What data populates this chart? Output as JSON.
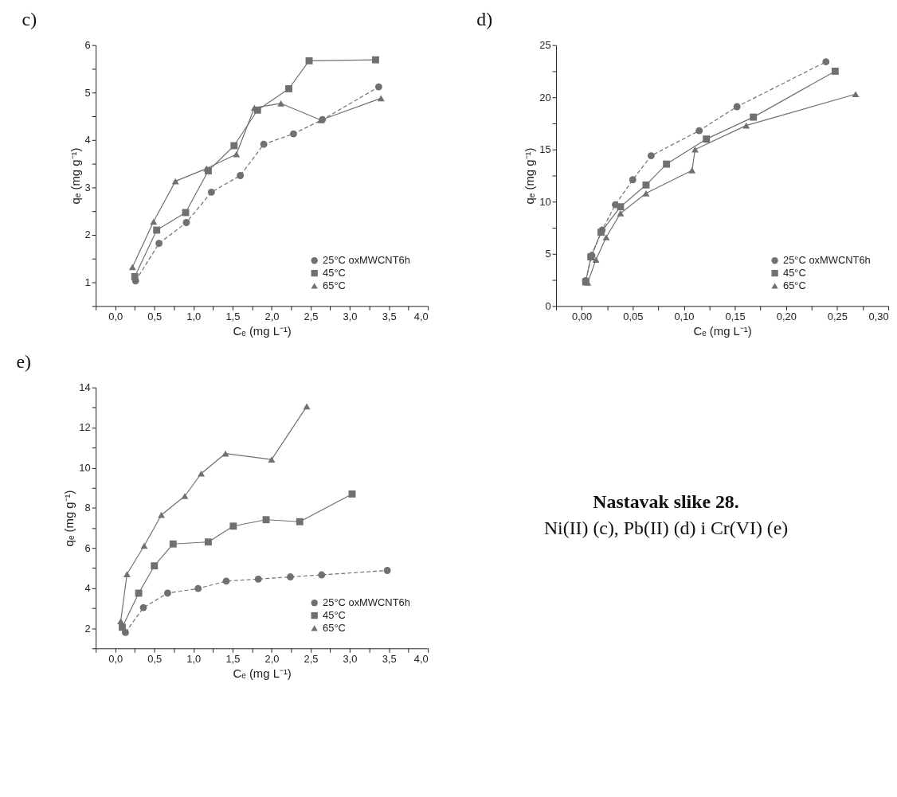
{
  "chart_data": [
    {
      "type": "line",
      "title": "c)",
      "xlabel": "Cₑ (mg L⁻¹)",
      "ylabel": "qₑ (mg g⁻¹)",
      "legend": "bottom right",
      "grid": false,
      "xlim": [
        -0.25,
        4.0
      ],
      "ylim": [
        0.5,
        6
      ],
      "xticks": [
        {
          "value": -0.25,
          "label": null
        },
        {
          "value": 0,
          "label": "0,0"
        },
        {
          "value": 0.25,
          "label": null
        },
        {
          "value": 0.5,
          "label": "0,5"
        },
        {
          "value": 0.75,
          "label": null
        },
        {
          "value": 1,
          "label": "1,0"
        },
        {
          "value": 1.25,
          "label": null
        },
        {
          "value": 1.5,
          "label": "1,5"
        },
        {
          "value": 1.75,
          "label": null
        },
        {
          "value": 2,
          "label": "2,0"
        },
        {
          "value": 2.25,
          "label": null
        },
        {
          "value": 2.5,
          "label": "2,5"
        },
        {
          "value": 2.75,
          "label": null
        },
        {
          "value": 3,
          "label": "3,0"
        },
        {
          "value": 3.25,
          "label": null
        },
        {
          "value": 3.5,
          "label": "3,5"
        },
        {
          "value": 3.75,
          "label": null
        },
        {
          "value": 4,
          "label": "4,0"
        }
      ],
      "yticks": [
        {
          "value": 0.5,
          "label": null
        },
        1,
        {
          "value": 1.5,
          "label": null
        },
        2,
        {
          "value": 2.5,
          "label": null
        },
        3,
        {
          "value": 3.5,
          "label": null
        },
        4,
        {
          "value": 4.5,
          "label": null
        },
        5,
        {
          "value": 5.5,
          "label": null
        },
        6
      ],
      "series": [
        {
          "name": "25°C  oxMWCNT6h",
          "color": "#707070",
          "marker": "circle",
          "line_style": "dashed",
          "x": [
            0.26,
            0.56,
            0.91,
            1.23,
            1.6,
            1.9,
            2.28,
            2.65,
            3.37
          ],
          "values": [
            1.03,
            1.82,
            2.26,
            2.9,
            3.25,
            3.91,
            4.13,
            4.43,
            5.12
          ]
        },
        {
          "name": "45°C",
          "color": "#707070",
          "marker": "square",
          "line_style": "solid",
          "x": [
            0.25,
            0.53,
            0.9,
            1.19,
            1.52,
            1.82,
            2.22,
            2.48,
            3.33
          ],
          "values": [
            1.12,
            2.1,
            2.47,
            3.35,
            3.88,
            4.63,
            5.08,
            5.67,
            5.69
          ]
        },
        {
          "name": "65°C",
          "color": "#707070",
          "marker": "triangle",
          "line_style": "solid",
          "x": [
            0.22,
            0.49,
            0.77,
            1.17,
            1.55,
            1.78,
            2.12,
            2.63,
            3.4
          ],
          "values": [
            1.32,
            2.28,
            3.13,
            3.4,
            3.7,
            4.68,
            4.77,
            4.42,
            4.88
          ]
        }
      ]
    },
    {
      "type": "line",
      "title": "d)",
      "xlabel": "Cₑ (mg L⁻¹)",
      "ylabel": "qₑ (mg g⁻¹)",
      "legend": "bottom right",
      "grid": false,
      "xlim": [
        -0.025,
        0.3
      ],
      "ylim": [
        0,
        25
      ],
      "xticks": [
        {
          "value": -0.025,
          "label": null
        },
        {
          "value": 0,
          "label": "0,00"
        },
        {
          "value": 0.025,
          "label": null
        },
        {
          "value": 0.05,
          "label": "0,05"
        },
        {
          "value": 0.075,
          "label": null
        },
        {
          "value": 0.1,
          "label": "0,10"
        },
        {
          "value": 0.125,
          "label": null
        },
        {
          "value": 0.15,
          "label": "0,15"
        },
        {
          "value": 0.175,
          "label": null
        },
        {
          "value": 0.2,
          "label": "0,20"
        },
        {
          "value": 0.225,
          "label": null
        },
        {
          "value": 0.25,
          "label": "0,25"
        },
        {
          "value": 0.275,
          "label": null
        },
        {
          "value": 0.3,
          "label": "0,30"
        }
      ],
      "yticks": [
        0,
        {
          "value": 2.5,
          "label": null
        },
        5,
        {
          "value": 7.5,
          "label": null
        },
        10,
        {
          "value": 12.5,
          "label": null
        },
        15,
        {
          "value": 17.5,
          "label": null
        },
        20,
        {
          "value": 22.5,
          "label": null
        },
        25
      ],
      "series": [
        {
          "name": "25°C  oxMWCNT6h",
          "color": "#707070",
          "marker": "circle",
          "line_style": "dashed",
          "x": [
            0.004,
            0.01,
            0.02,
            0.033,
            0.05,
            0.068,
            0.115,
            0.152,
            0.239
          ],
          "values": [
            2.44,
            4.85,
            7.27,
            9.71,
            12.1,
            14.4,
            16.8,
            19.1,
            23.4
          ]
        },
        {
          "name": "45°C",
          "color": "#707070",
          "marker": "square",
          "line_style": "solid",
          "x": [
            0.004,
            0.009,
            0.019,
            0.038,
            0.063,
            0.083,
            0.122,
            0.168,
            0.248
          ],
          "values": [
            2.32,
            4.71,
            7.07,
            9.51,
            11.6,
            13.6,
            16.0,
            18.1,
            22.5
          ]
        },
        {
          "name": "65°C",
          "color": "#707070",
          "marker": "triangle",
          "line_style": "solid",
          "x": [
            0.006,
            0.014,
            0.024,
            0.038,
            0.063,
            0.108,
            0.111,
            0.161,
            0.268
          ],
          "values": [
            2.24,
            4.44,
            6.59,
            8.88,
            10.8,
            13.0,
            15.0,
            17.3,
            20.3
          ]
        }
      ]
    },
    {
      "type": "line",
      "title": "e)",
      "xlabel": "Cₑ (mg L⁻¹)",
      "ylabel": "qₑ (mg g⁻¹)",
      "legend": "bottom right",
      "grid": false,
      "xlim": [
        -0.25,
        4.0
      ],
      "ylim": [
        1,
        14
      ],
      "xticks": [
        {
          "value": -0.25,
          "label": null
        },
        {
          "value": 0,
          "label": "0,0"
        },
        {
          "value": 0.25,
          "label": null
        },
        {
          "value": 0.5,
          "label": "0,5"
        },
        {
          "value": 0.75,
          "label": null
        },
        {
          "value": 1,
          "label": "1,0"
        },
        {
          "value": 1.25,
          "label": null
        },
        {
          "value": 1.5,
          "label": "1,5"
        },
        {
          "value": 1.75,
          "label": null
        },
        {
          "value": 2,
          "label": "2,0"
        },
        {
          "value": 2.25,
          "label": null
        },
        {
          "value": 2.5,
          "label": "2,5"
        },
        {
          "value": 2.75,
          "label": null
        },
        {
          "value": 3,
          "label": "3,0"
        },
        {
          "value": 3.25,
          "label": null
        },
        {
          "value": 3.5,
          "label": "3,5"
        },
        {
          "value": 3.75,
          "label": null
        },
        {
          "value": 4,
          "label": "4,0"
        }
      ],
      "yticks": [
        {
          "value": 1,
          "label": null
        },
        2,
        {
          "value": 3,
          "label": null
        },
        4,
        {
          "value": 5,
          "label": null
        },
        6,
        {
          "value": 7,
          "label": null
        },
        8,
        {
          "value": 9,
          "label": null
        },
        10,
        {
          "value": 11,
          "label": null
        },
        12,
        {
          "value": 13,
          "label": null
        },
        14
      ],
      "series": [
        {
          "name": "25°C  oxMWCNT6h",
          "color": "#707070",
          "marker": "circle",
          "line_style": "dashed",
          "x": [
            0.13,
            0.36,
            0.67,
            1.06,
            1.42,
            1.83,
            2.24,
            2.64,
            3.48
          ],
          "values": [
            1.79,
            3.03,
            3.75,
            3.98,
            4.35,
            4.45,
            4.56,
            4.66,
            4.88
          ]
        },
        {
          "name": "45°C",
          "color": "#707070",
          "marker": "square",
          "line_style": "solid",
          "x": [
            0.09,
            0.3,
            0.5,
            0.74,
            1.19,
            1.51,
            1.93,
            2.36,
            3.03
          ],
          "values": [
            2.05,
            3.75,
            5.11,
            6.2,
            6.3,
            7.09,
            7.41,
            7.31,
            8.69
          ]
        },
        {
          "name": "65°C",
          "color": "#707070",
          "marker": "triangle",
          "line_style": "solid",
          "x": [
            0.07,
            0.15,
            0.37,
            0.59,
            0.89,
            1.1,
            1.41,
            2.0,
            2.45
          ],
          "values": [
            2.35,
            4.7,
            6.11,
            7.65,
            8.59,
            9.71,
            10.71,
            10.41,
            13.06
          ]
        }
      ]
    },
    {
      "type": "other",
      "title": "Nastavak slike 28.",
      "subtitle": "Ni(II) (c), Pb(II) (d) i Cr(VI) (e)"
    }
  ]
}
